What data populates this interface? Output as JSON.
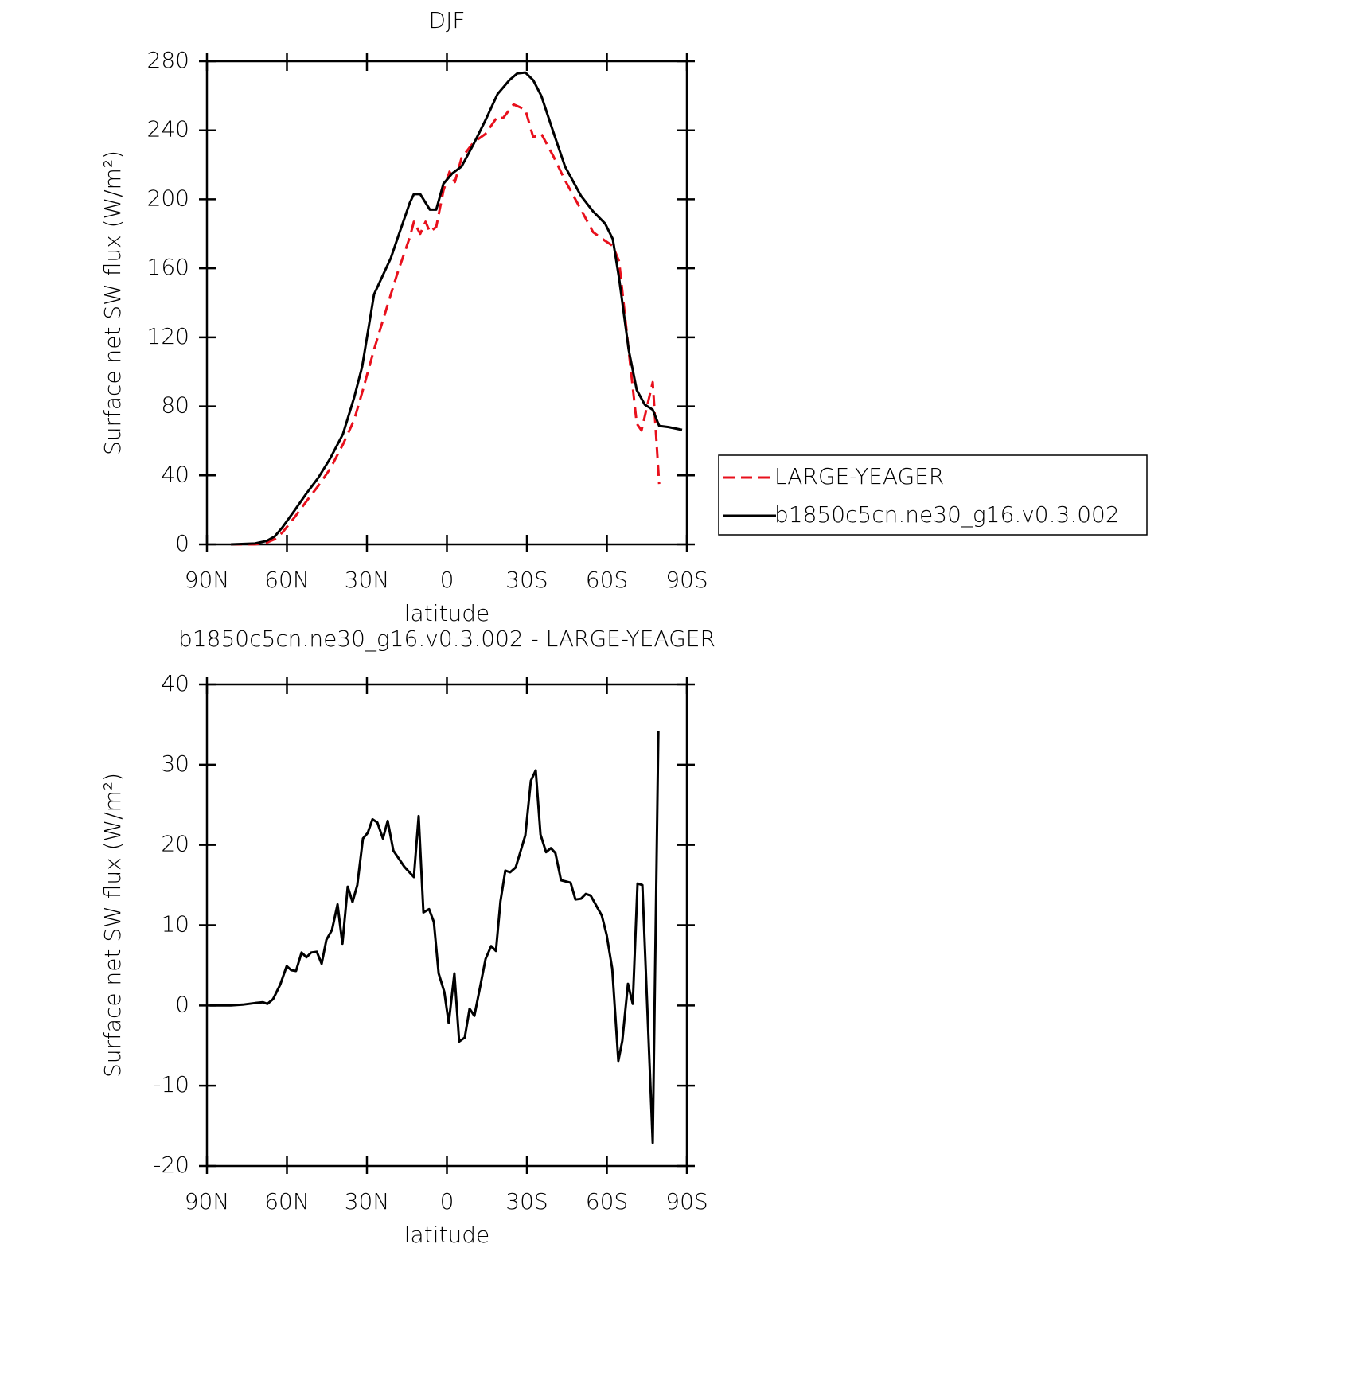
{
  "chart_data": [
    {
      "type": "line",
      "title": "DJF",
      "x_label": "latitude",
      "y_label": "Surface net SW flux (W/m²)",
      "xlim": [
        90,
        -90
      ],
      "xticks": [
        {
          "value": 90,
          "label": "90N"
        },
        {
          "value": 60,
          "label": "60N"
        },
        {
          "value": 30,
          "label": "30N"
        },
        0,
        {
          "value": -30,
          "label": "30S"
        },
        {
          "value": -60,
          "label": "60S"
        },
        {
          "value": -90,
          "label": "90S"
        }
      ],
      "ylim": [
        0,
        280
      ],
      "yticks": [
        0,
        40,
        80,
        120,
        160,
        200,
        240,
        280
      ],
      "legend": "right",
      "grid": false,
      "series": [
        {
          "name": "LARGE-YEAGER",
          "color": "#e8101c",
          "dash": true,
          "x": [
            81,
            72,
            67.6,
            64.6,
            61.6,
            57,
            52.7,
            48.2,
            43.7,
            39,
            34.8,
            31.8,
            27.3,
            21,
            18.4,
            13.9,
            12.4,
            10,
            8,
            6.4,
            4,
            1.3,
            -1,
            -3,
            -5.5,
            -10,
            -14.5,
            -19,
            -21,
            -25,
            -29.4,
            -32.4,
            -35.4,
            -39.9,
            -44.3,
            -50.3,
            -54.8,
            -59.3,
            -62.2,
            -64.6,
            -68.2,
            -71.2,
            -73,
            -77.2,
            -79.6
          ],
          "values": [
            0,
            0,
            1,
            3,
            7,
            16,
            25,
            34,
            44,
            58,
            72,
            88,
            113,
            145,
            158,
            178,
            187,
            180,
            187,
            181,
            184,
            205,
            216,
            210,
            224,
            233,
            238,
            248,
            247,
            255,
            252,
            236,
            238,
            225,
            211,
            194,
            181,
            176,
            173,
            164,
            112,
            70,
            66,
            94,
            35
          ]
        },
        {
          "name": "b1850c5cn.ne30_g16.v0.3.002",
          "color": "#000000",
          "dash": false,
          "x": [
            81,
            72,
            67.6,
            64.6,
            61.6,
            57,
            52.7,
            48.2,
            43.7,
            39,
            34.8,
            31.8,
            27.3,
            21,
            18.4,
            13.9,
            12.4,
            10,
            6.4,
            4,
            1.3,
            -2,
            -5.5,
            -10,
            -14.5,
            -19,
            -23.4,
            -26.4,
            -29.4,
            -32.4,
            -35.4,
            -39.9,
            -44.3,
            -50.3,
            -54.8,
            -59.3,
            -62.2,
            -64.6,
            -68.2,
            -71.2,
            -74.2,
            -77.2,
            -79.6,
            -83.1,
            -88.2
          ],
          "values": [
            0,
            0.5,
            2,
            4.6,
            10,
            20,
            29.5,
            38.7,
            50,
            64,
            85,
            103,
            145,
            166,
            178,
            198,
            203,
            203,
            194,
            194,
            209,
            215,
            219,
            232,
            246,
            261,
            269,
            273,
            273.5,
            269,
            260,
            239,
            219,
            202,
            193,
            186,
            177,
            154,
            112.5,
            89.5,
            81,
            78,
            68.7,
            68,
            66.4
          ]
        }
      ]
    },
    {
      "type": "line",
      "title": "b1850c5cn.ne30_g16.v0.3.002 - LARGE-YEAGER",
      "x_label": "latitude",
      "y_label": "Surface net SW flux (W/m²)",
      "xlim": [
        90,
        -90
      ],
      "xticks": [
        {
          "value": 90,
          "label": "90N"
        },
        {
          "value": 60,
          "label": "60N"
        },
        {
          "value": 30,
          "label": "30N"
        },
        0,
        {
          "value": -30,
          "label": "30S"
        },
        {
          "value": -60,
          "label": "60S"
        },
        {
          "value": -90,
          "label": "90S"
        }
      ],
      "ylim": [
        -20,
        40
      ],
      "yticks": [
        -20,
        -10,
        0,
        10,
        20,
        30,
        40
      ],
      "grid": false,
      "series": [
        {
          "color": "#000000",
          "dash": false,
          "x": [
            89,
            81,
            76.6,
            72,
            69,
            67.3,
            65.2,
            62.5,
            60.1,
            58.4,
            56.6,
            54.5,
            52.7,
            50.9,
            48.8,
            47,
            45.2,
            43.1,
            41,
            39.2,
            37.2,
            35.4,
            33.6,
            31.5,
            29.7,
            27.9,
            26.1,
            24,
            22.2,
            20.1,
            16,
            12.4,
            10.6,
            8.8,
            6.7,
            4.9,
            3.1,
            1,
            -0.7,
            -2.8,
            -4.6,
            -6.7,
            -8.5,
            -10.3,
            -12.4,
            -14.5,
            -16.6,
            -18.4,
            -20.1,
            -21.9,
            -23.7,
            -25.8,
            -27.6,
            -29.4,
            -31.5,
            -33.3,
            -35.1,
            -37.2,
            -39,
            -40.7,
            -42.8,
            -46.4,
            -48.2,
            -50.3,
            -52.1,
            -53.9,
            -58.1,
            -59.9,
            -62,
            -64.3,
            -65.8,
            -67.9,
            -69.7,
            -71.5,
            -73.3,
            -77.2,
            -79.3
          ],
          "values": [
            0,
            0,
            0.1,
            0.3,
            0.4,
            0.2,
            0.8,
            2.6,
            4.9,
            4.4,
            4.3,
            6.6,
            6.0,
            6.6,
            6.7,
            5.2,
            8.2,
            9.4,
            12.6,
            7.7,
            14.8,
            12.9,
            15.0,
            20.8,
            21.5,
            23.2,
            22.8,
            20.8,
            23.0,
            19.3,
            17.3,
            16.0,
            23.6,
            11.6,
            12.0,
            10.4,
            4.0,
            1.7,
            -2.2,
            4.0,
            -4.5,
            -4.0,
            -0.4,
            -1.3,
            2.2,
            5.8,
            7.4,
            6.8,
            13.0,
            16.8,
            16.6,
            17.2,
            19.2,
            21.2,
            28.0,
            29.3,
            21.3,
            19.1,
            19.6,
            19.0,
            15.6,
            15.3,
            13.2,
            13.3,
            13.9,
            13.7,
            11.2,
            8.8,
            4.6,
            -6.9,
            -4.4,
            2.7,
            0.2,
            15.2,
            15.0,
            -17.1,
            34.2
          ]
        }
      ]
    }
  ]
}
